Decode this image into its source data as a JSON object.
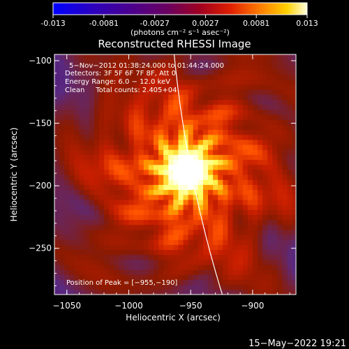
{
  "colorbar": {
    "tick_labels": [
      "-0.013",
      "-0.0081",
      "-0.0027",
      "0.0027",
      "0.0081",
      "0.013"
    ],
    "unit_label": "(photons cm⁻² s⁻¹ asec⁻²)"
  },
  "chart_data": {
    "type": "heatmap",
    "title": "Reconstructed RHESSI Image",
    "xlabel": "Heliocentric X (arcsec)",
    "ylabel": "Heliocentric Y (arcsec)",
    "xlim": [
      -1060,
      -865
    ],
    "ylim": [
      -287,
      -95
    ],
    "xticks": [
      -1050,
      -1000,
      -950,
      -900
    ],
    "yticks": [
      -250,
      -200,
      -150,
      -100
    ],
    "x_tick_labels": [
      "−1050",
      "−1000",
      "−950",
      "−900"
    ],
    "y_tick_labels": [
      "−250",
      "−200",
      "−150",
      "−100"
    ],
    "value_range": [
      -0.013,
      0.013
    ],
    "peak": [
      -955,
      -190
    ],
    "colormap": [
      "#0000ff",
      "#3300aa",
      "#4a0f70",
      "#5a2a82",
      "#8b1a00",
      "#c81e00",
      "#ff5000",
      "#ffaa00",
      "#ffff60",
      "#ffffff"
    ],
    "annotations": {
      "time_range": "5−Nov−2012 01:38:24.000 to 01:44:24.000",
      "detectors": "Detectors: 3F 5F 6F 7F 8F, Att 0",
      "energy": "Energy Range: 6.0 − 12.0 keV",
      "method": "Clean     Total counts: 2.405+04",
      "peak_text": "Position of Peak = [−955,−190]"
    }
  },
  "footer_timestamp": "15−May−2022 19:21"
}
